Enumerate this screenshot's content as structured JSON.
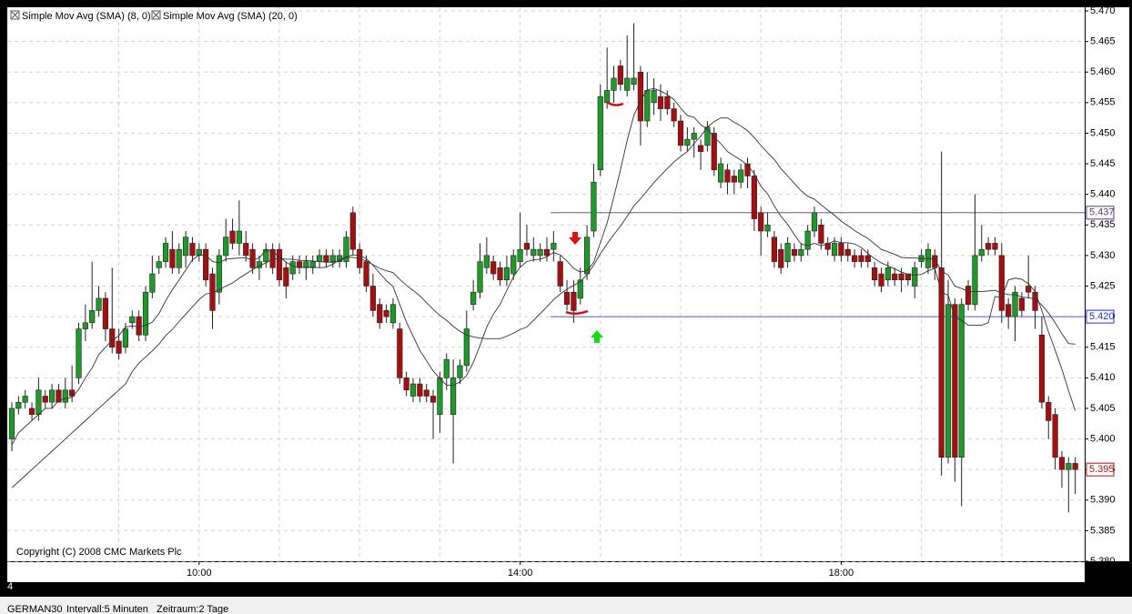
{
  "chart_data": {
    "type": "candlestick",
    "categories": [
      null,
      null,
      null,
      null,
      null,
      null,
      null,
      null,
      null,
      null,
      null,
      null,
      null,
      null,
      null,
      null,
      null,
      null,
      null,
      null,
      null,
      null,
      null,
      null,
      null,
      null,
      null,
      null,
      "10:00",
      null,
      null,
      null,
      null,
      null,
      null,
      null,
      null,
      null,
      null,
      null,
      null,
      null,
      null,
      null,
      null,
      null,
      null,
      null,
      null,
      null,
      null,
      null,
      null,
      null,
      null,
      null,
      null,
      null,
      null,
      null,
      null,
      null,
      null,
      null,
      null,
      null,
      null,
      null,
      null,
      null,
      null,
      null,
      null,
      null,
      null,
      null,
      "14:00",
      null,
      null,
      null,
      null,
      null,
      null,
      null,
      null,
      null,
      null,
      null,
      null,
      null,
      null,
      null,
      null,
      null,
      null,
      null,
      null,
      null,
      null,
      null,
      null,
      null,
      null,
      null,
      null,
      null,
      null,
      null,
      null,
      null,
      null,
      null,
      null,
      null,
      null,
      null,
      null,
      null,
      null,
      null,
      null,
      null,
      null,
      null,
      "18:00",
      null,
      null,
      null,
      null,
      null,
      null,
      null,
      null,
      null,
      null,
      null,
      null,
      null,
      null,
      null,
      null,
      null,
      null,
      null,
      null,
      null,
      null,
      null,
      null,
      null,
      null,
      null,
      null,
      null,
      null,
      null,
      null,
      null,
      null,
      null
    ],
    "open": [
      5.4,
      5.405,
      5.406,
      5.405,
      5.404,
      5.407,
      5.406,
      5.408,
      5.406,
      5.408,
      5.41,
      5.418,
      5.419,
      5.421,
      5.423,
      5.418,
      5.416,
      5.415,
      5.419,
      5.42,
      5.417,
      5.424,
      5.428,
      5.429,
      5.431,
      5.428,
      5.43,
      5.432,
      5.43,
      5.431,
      5.427,
      5.424,
      5.43,
      5.434,
      5.432,
      5.432,
      5.431,
      5.428,
      5.429,
      5.431,
      5.431,
      5.428,
      5.427,
      5.429,
      5.428,
      5.428,
      5.429,
      5.43,
      5.429,
      5.429,
      5.429,
      5.437,
      5.431,
      5.429,
      5.425,
      5.422,
      5.421,
      5.419,
      5.418,
      5.41,
      5.407,
      5.409,
      5.408,
      5.407,
      5.404,
      5.41,
      5.404,
      5.41,
      5.412,
      5.422,
      5.424,
      5.428,
      5.429,
      5.428,
      5.426,
      5.427,
      5.429,
      5.432,
      5.43,
      5.43,
      5.431,
      5.431,
      5.429,
      5.424,
      5.424,
      5.423,
      5.427,
      5.434,
      5.444,
      5.455,
      5.457,
      5.461,
      5.457,
      5.458,
      5.46,
      5.452,
      5.455,
      5.456,
      5.456,
      5.454,
      5.452,
      5.448,
      5.449,
      5.448,
      5.448,
      5.45,
      5.442,
      5.444,
      5.443,
      5.442,
      5.445,
      5.443,
      5.437,
      5.434,
      5.433,
      5.431,
      5.429,
      5.431,
      5.43,
      5.431,
      5.434,
      5.435,
      5.432,
      5.43,
      5.432,
      5.431,
      5.43,
      5.43,
      5.43,
      5.428,
      5.427,
      5.426,
      5.427,
      5.427,
      5.427,
      5.425,
      5.429,
      5.428,
      5.43,
      5.428,
      5.397,
      5.422,
      5.397,
      5.425,
      5.422,
      5.43,
      5.432,
      5.432,
      5.43,
      5.422,
      5.42,
      5.423,
      5.425,
      5.424,
      5.417,
      5.406,
      5.404,
      5.397,
      5.395,
      5.396
    ],
    "high": [
      5.406,
      5.407,
      5.408,
      5.406,
      5.41,
      5.408,
      5.409,
      5.409,
      5.41,
      5.412,
      5.419,
      5.422,
      5.429,
      5.425,
      5.424,
      5.428,
      5.418,
      5.419,
      5.421,
      5.421,
      5.425,
      5.43,
      5.43,
      5.433,
      5.434,
      5.432,
      5.434,
      5.433,
      5.432,
      5.432,
      5.428,
      5.431,
      5.436,
      5.436,
      5.439,
      5.434,
      5.432,
      5.43,
      5.432,
      5.432,
      5.432,
      5.429,
      5.43,
      5.43,
      5.43,
      5.43,
      5.431,
      5.431,
      5.431,
      5.431,
      5.434,
      5.438,
      5.432,
      5.43,
      5.427,
      5.423,
      5.422,
      5.423,
      5.419,
      5.411,
      5.41,
      5.41,
      5.409,
      5.408,
      5.411,
      5.414,
      5.413,
      5.413,
      5.421,
      5.426,
      5.432,
      5.433,
      5.43,
      5.429,
      5.43,
      5.431,
      5.437,
      5.435,
      5.433,
      5.432,
      5.433,
      5.434,
      5.43,
      5.426,
      5.426,
      5.428,
      5.435,
      5.445,
      5.458,
      5.464,
      5.461,
      5.462,
      5.466,
      5.468,
      5.461,
      5.46,
      5.459,
      5.458,
      5.457,
      5.455,
      5.453,
      5.451,
      5.451,
      5.449,
      5.452,
      5.451,
      5.446,
      5.445,
      5.444,
      5.445,
      5.446,
      5.444,
      5.438,
      5.437,
      5.434,
      5.432,
      5.433,
      5.432,
      5.432,
      5.435,
      5.438,
      5.436,
      5.433,
      5.433,
      5.433,
      5.432,
      5.431,
      5.431,
      5.431,
      5.429,
      5.428,
      5.429,
      5.428,
      5.428,
      5.427,
      5.429,
      5.431,
      5.432,
      5.431,
      5.447,
      5.426,
      5.423,
      5.423,
      5.426,
      5.44,
      5.435,
      5.433,
      5.433,
      5.432,
      5.423,
      5.425,
      5.424,
      5.43,
      5.425,
      5.42,
      5.407,
      5.405,
      5.398,
      5.397,
      5.397
    ],
    "low": [
      5.398,
      5.404,
      5.405,
      5.403,
      5.403,
      5.405,
      5.405,
      5.406,
      5.405,
      5.406,
      5.409,
      5.416,
      5.418,
      5.42,
      5.416,
      5.414,
      5.413,
      5.414,
      5.418,
      5.416,
      5.416,
      5.423,
      5.427,
      5.428,
      5.427,
      5.427,
      5.428,
      5.429,
      5.429,
      5.425,
      5.418,
      5.422,
      5.429,
      5.431,
      5.43,
      5.429,
      5.427,
      5.426,
      5.428,
      5.427,
      5.425,
      5.423,
      5.426,
      5.427,
      5.426,
      5.427,
      5.428,
      5.428,
      5.428,
      5.428,
      5.428,
      5.43,
      5.427,
      5.424,
      5.42,
      5.418,
      5.419,
      5.418,
      5.409,
      5.407,
      5.406,
      5.406,
      5.406,
      5.4,
      5.401,
      5.408,
      5.396,
      5.409,
      5.411,
      5.421,
      5.423,
      5.427,
      5.426,
      5.425,
      5.425,
      5.426,
      5.428,
      5.43,
      5.429,
      5.429,
      5.429,
      5.429,
      5.424,
      5.421,
      5.419,
      5.422,
      5.426,
      5.433,
      5.443,
      5.454,
      5.455,
      5.457,
      5.456,
      5.457,
      5.448,
      5.451,
      5.453,
      5.452,
      5.453,
      5.451,
      5.447,
      5.447,
      5.446,
      5.444,
      5.447,
      5.443,
      5.441,
      5.44,
      5.44,
      5.441,
      5.441,
      5.434,
      5.43,
      5.433,
      5.428,
      5.427,
      5.428,
      5.429,
      5.429,
      5.43,
      5.433,
      5.431,
      5.43,
      5.429,
      5.429,
      5.429,
      5.428,
      5.428,
      5.428,
      5.425,
      5.424,
      5.425,
      5.425,
      5.424,
      5.425,
      5.423,
      5.428,
      5.427,
      5.426,
      5.394,
      5.396,
      5.393,
      5.389,
      5.421,
      5.421,
      5.429,
      5.43,
      5.43,
      5.419,
      5.418,
      5.416,
      5.42,
      5.423,
      5.418,
      5.405,
      5.4,
      5.395,
      5.392,
      5.388,
      5.391
    ],
    "close": [
      5.405,
      5.406,
      5.407,
      5.404,
      5.408,
      5.406,
      5.408,
      5.406,
      5.408,
      5.407,
      5.418,
      5.419,
      5.421,
      5.423,
      5.418,
      5.415,
      5.414,
      5.418,
      5.42,
      5.417,
      5.424,
      5.427,
      5.429,
      5.432,
      5.428,
      5.431,
      5.433,
      5.43,
      5.431,
      5.426,
      5.421,
      5.43,
      5.433,
      5.432,
      5.434,
      5.43,
      5.428,
      5.429,
      5.431,
      5.428,
      5.426,
      5.425,
      5.429,
      5.428,
      5.429,
      5.429,
      5.43,
      5.429,
      5.43,
      5.43,
      5.433,
      5.431,
      5.428,
      5.425,
      5.421,
      5.419,
      5.42,
      5.422,
      5.41,
      5.408,
      5.409,
      5.407,
      5.407,
      5.406,
      5.41,
      5.413,
      5.41,
      5.412,
      5.418,
      5.424,
      5.429,
      5.43,
      5.427,
      5.426,
      5.428,
      5.43,
      5.431,
      5.431,
      5.431,
      5.431,
      5.43,
      5.432,
      5.425,
      5.422,
      5.421,
      5.426,
      5.433,
      5.442,
      5.456,
      5.457,
      5.459,
      5.458,
      5.459,
      5.459,
      5.452,
      5.457,
      5.457,
      5.454,
      5.454,
      5.452,
      5.448,
      5.449,
      5.45,
      5.447,
      5.451,
      5.444,
      5.445,
      5.442,
      5.442,
      5.444,
      5.443,
      5.436,
      5.434,
      5.435,
      5.429,
      5.428,
      5.432,
      5.43,
      5.431,
      5.434,
      5.437,
      5.432,
      5.431,
      5.432,
      5.43,
      5.43,
      5.429,
      5.429,
      5.429,
      5.426,
      5.425,
      5.428,
      5.426,
      5.426,
      5.426,
      5.428,
      5.43,
      5.431,
      5.428,
      5.397,
      5.422,
      5.397,
      5.422,
      5.422,
      5.43,
      5.431,
      5.431,
      5.431,
      5.421,
      5.42,
      5.424,
      5.421,
      5.424,
      5.421,
      5.406,
      5.403,
      5.397,
      5.395,
      5.396,
      5.395
    ],
    "up_color": "#1f9a2a",
    "down_color": "#a50f12",
    "series": [
      {
        "name": "Simple Mov Avg (SMA) (8, 0)",
        "color": "#333333",
        "values": [
          5.399,
          5.401,
          5.402,
          5.403,
          5.404,
          5.405,
          5.405,
          5.4063,
          5.4066,
          5.4068,
          5.4081,
          5.41,
          5.4116,
          5.4138,
          5.415,
          5.4161,
          5.4169,
          5.4183,
          5.4185,
          5.4183,
          5.4186,
          5.4191,
          5.4205,
          5.4226,
          5.4244,
          5.426,
          5.4276,
          5.4293,
          5.4301,
          5.43,
          5.429,
          5.4288,
          5.4294,
          5.4295,
          5.4296,
          5.4296,
          5.4293,
          5.4296,
          5.4309,
          5.4306,
          5.4298,
          5.4289,
          5.4283,
          5.428,
          5.4281,
          5.4281,
          5.428,
          5.4281,
          5.4286,
          5.4293,
          5.4298,
          5.4301,
          5.43,
          5.4295,
          5.4284,
          5.4271,
          5.4259,
          5.4249,
          5.422,
          5.4191,
          5.4168,
          5.4145,
          5.4128,
          5.4111,
          5.4099,
          5.4088,
          5.4088,
          5.4093,
          5.4104,
          5.4125,
          5.4153,
          5.4183,
          5.4204,
          5.422,
          5.4243,
          5.4265,
          5.4281,
          5.429,
          5.4293,
          5.4294,
          5.4298,
          5.4305,
          5.4301,
          5.4291,
          5.4279,
          5.4273,
          5.4275,
          5.4289,
          5.4321,
          5.4353,
          5.4395,
          5.444,
          5.4488,
          5.4529,
          5.4553,
          5.4571,
          5.4573,
          5.4569,
          5.4563,
          5.4555,
          5.4541,
          5.4529,
          5.4526,
          5.4514,
          5.4506,
          5.4494,
          5.4483,
          5.447,
          5.4463,
          5.4456,
          5.4448,
          5.4434,
          5.4413,
          5.4401,
          5.4381,
          5.4364,
          5.4351,
          5.4334,
          5.4319,
          5.4316,
          5.432,
          5.4316,
          5.4319,
          5.4324,
          5.4321,
          5.4321,
          5.4319,
          5.4313,
          5.4303,
          5.4295,
          5.4288,
          5.4283,
          5.4278,
          5.4273,
          5.4269,
          5.4268,
          5.4269,
          5.4275,
          5.4279,
          5.424,
          5.4235,
          5.4199,
          5.4194,
          5.4186,
          5.4186,
          5.4186,
          5.419,
          5.4233,
          5.4231,
          5.426,
          5.4263,
          5.4261,
          5.4254,
          5.4241,
          5.421,
          5.4175,
          5.4145,
          5.4114,
          5.4079,
          5.4046
        ]
      },
      {
        "name": "Simple Mov Avg (SMA) (20, 0)",
        "color": "#333333",
        "values": [
          5.392,
          5.393,
          5.394,
          5.395,
          5.396,
          5.397,
          5.398,
          5.399,
          5.4,
          5.401,
          5.402,
          5.403,
          5.404,
          5.405,
          5.406,
          5.407,
          5.408,
          5.409,
          5.411,
          5.4124,
          5.4134,
          5.4144,
          5.4155,
          5.4169,
          5.4179,
          5.4192,
          5.4204,
          5.4216,
          5.4228,
          5.4237,
          5.4239,
          5.4244,
          5.425,
          5.4255,
          5.4263,
          5.427,
          5.4277,
          5.4283,
          5.4288,
          5.4294,
          5.4295,
          5.4294,
          5.4294,
          5.4292,
          5.4292,
          5.4291,
          5.429,
          5.4289,
          5.4289,
          5.4291,
          5.4297,
          5.4297,
          5.4295,
          5.4291,
          5.4285,
          5.4279,
          5.4275,
          5.4272,
          5.4261,
          5.4251,
          5.4243,
          5.4234,
          5.4223,
          5.4212,
          5.4202,
          5.4194,
          5.4184,
          5.4176,
          5.417,
          5.4167,
          5.4165,
          5.4164,
          5.4164,
          5.4164,
          5.4168,
          5.4173,
          5.4179,
          5.4183,
          5.4194,
          5.4205,
          5.4216,
          5.4228,
          5.4237,
          5.4245,
          5.4251,
          5.4257,
          5.4269,
          5.4284,
          5.4303,
          5.4319,
          5.4334,
          5.4348,
          5.4364,
          5.4381,
          5.4393,
          5.4406,
          5.4419,
          5.4431,
          5.4442,
          5.4453,
          5.4462,
          5.447,
          5.4483,
          5.4495,
          5.451,
          5.4519,
          5.4525,
          5.4525,
          5.4518,
          5.4512,
          5.4504,
          5.4493,
          5.448,
          5.4468,
          5.4457,
          5.4442,
          5.443,
          5.4418,
          5.4406,
          5.4397,
          5.4392,
          5.4383,
          5.4374,
          5.4366,
          5.4356,
          5.4349,
          5.4341,
          5.4334,
          5.4328,
          5.4319,
          5.431,
          5.4306,
          5.4302,
          5.4297,
          5.4296,
          5.4296,
          5.4295,
          5.4295,
          5.4294,
          5.4275,
          5.4268,
          5.425,
          5.4246,
          5.4241,
          5.4241,
          5.4241,
          5.4242,
          5.4243,
          5.4239,
          5.4236,
          5.4236,
          5.4232,
          5.4231,
          5.4229,
          5.4219,
          5.4206,
          5.419,
          5.4172,
          5.4156,
          5.4155
        ]
      }
    ],
    "ylim": [
      5.38,
      5.47
    ],
    "yticks": [
      {
        "value": 5.38,
        "label": "5.380"
      },
      5.385,
      {
        "value": 5.39,
        "label": "5.390"
      },
      5.395,
      {
        "value": 5.4,
        "label": "5.400"
      },
      5.405,
      {
        "value": 5.41,
        "label": "5.410"
      },
      5.415,
      {
        "value": 5.42,
        "label": "5.420"
      },
      5.425,
      {
        "value": 5.43,
        "label": "5.430"
      },
      5.435,
      {
        "value": 5.44,
        "label": "5.440"
      },
      5.445,
      {
        "value": 5.45,
        "label": "5.450"
      },
      5.455,
      {
        "value": 5.46,
        "label": "5.460"
      },
      5.465,
      {
        "value": 5.47,
        "label": "5.470"
      }
    ],
    "grid": true,
    "price_markers": [
      {
        "value": 5.437,
        "color": "#5a3a7a",
        "line": true
      },
      {
        "value": 5.42,
        "label": "5.420",
        "color": "#1f2fd0",
        "line": true
      },
      {
        "value": 5.395,
        "color": "#b01010",
        "line": false
      }
    ],
    "copyright": "Copyright (C) 2008 CMC Markets Plc"
  },
  "corner_label": "4",
  "status_bar": {
    "symbol": "GERMAN30",
    "interval": "Intervall:5 Minuten",
    "period": "Zeitraum:2 Tage"
  }
}
